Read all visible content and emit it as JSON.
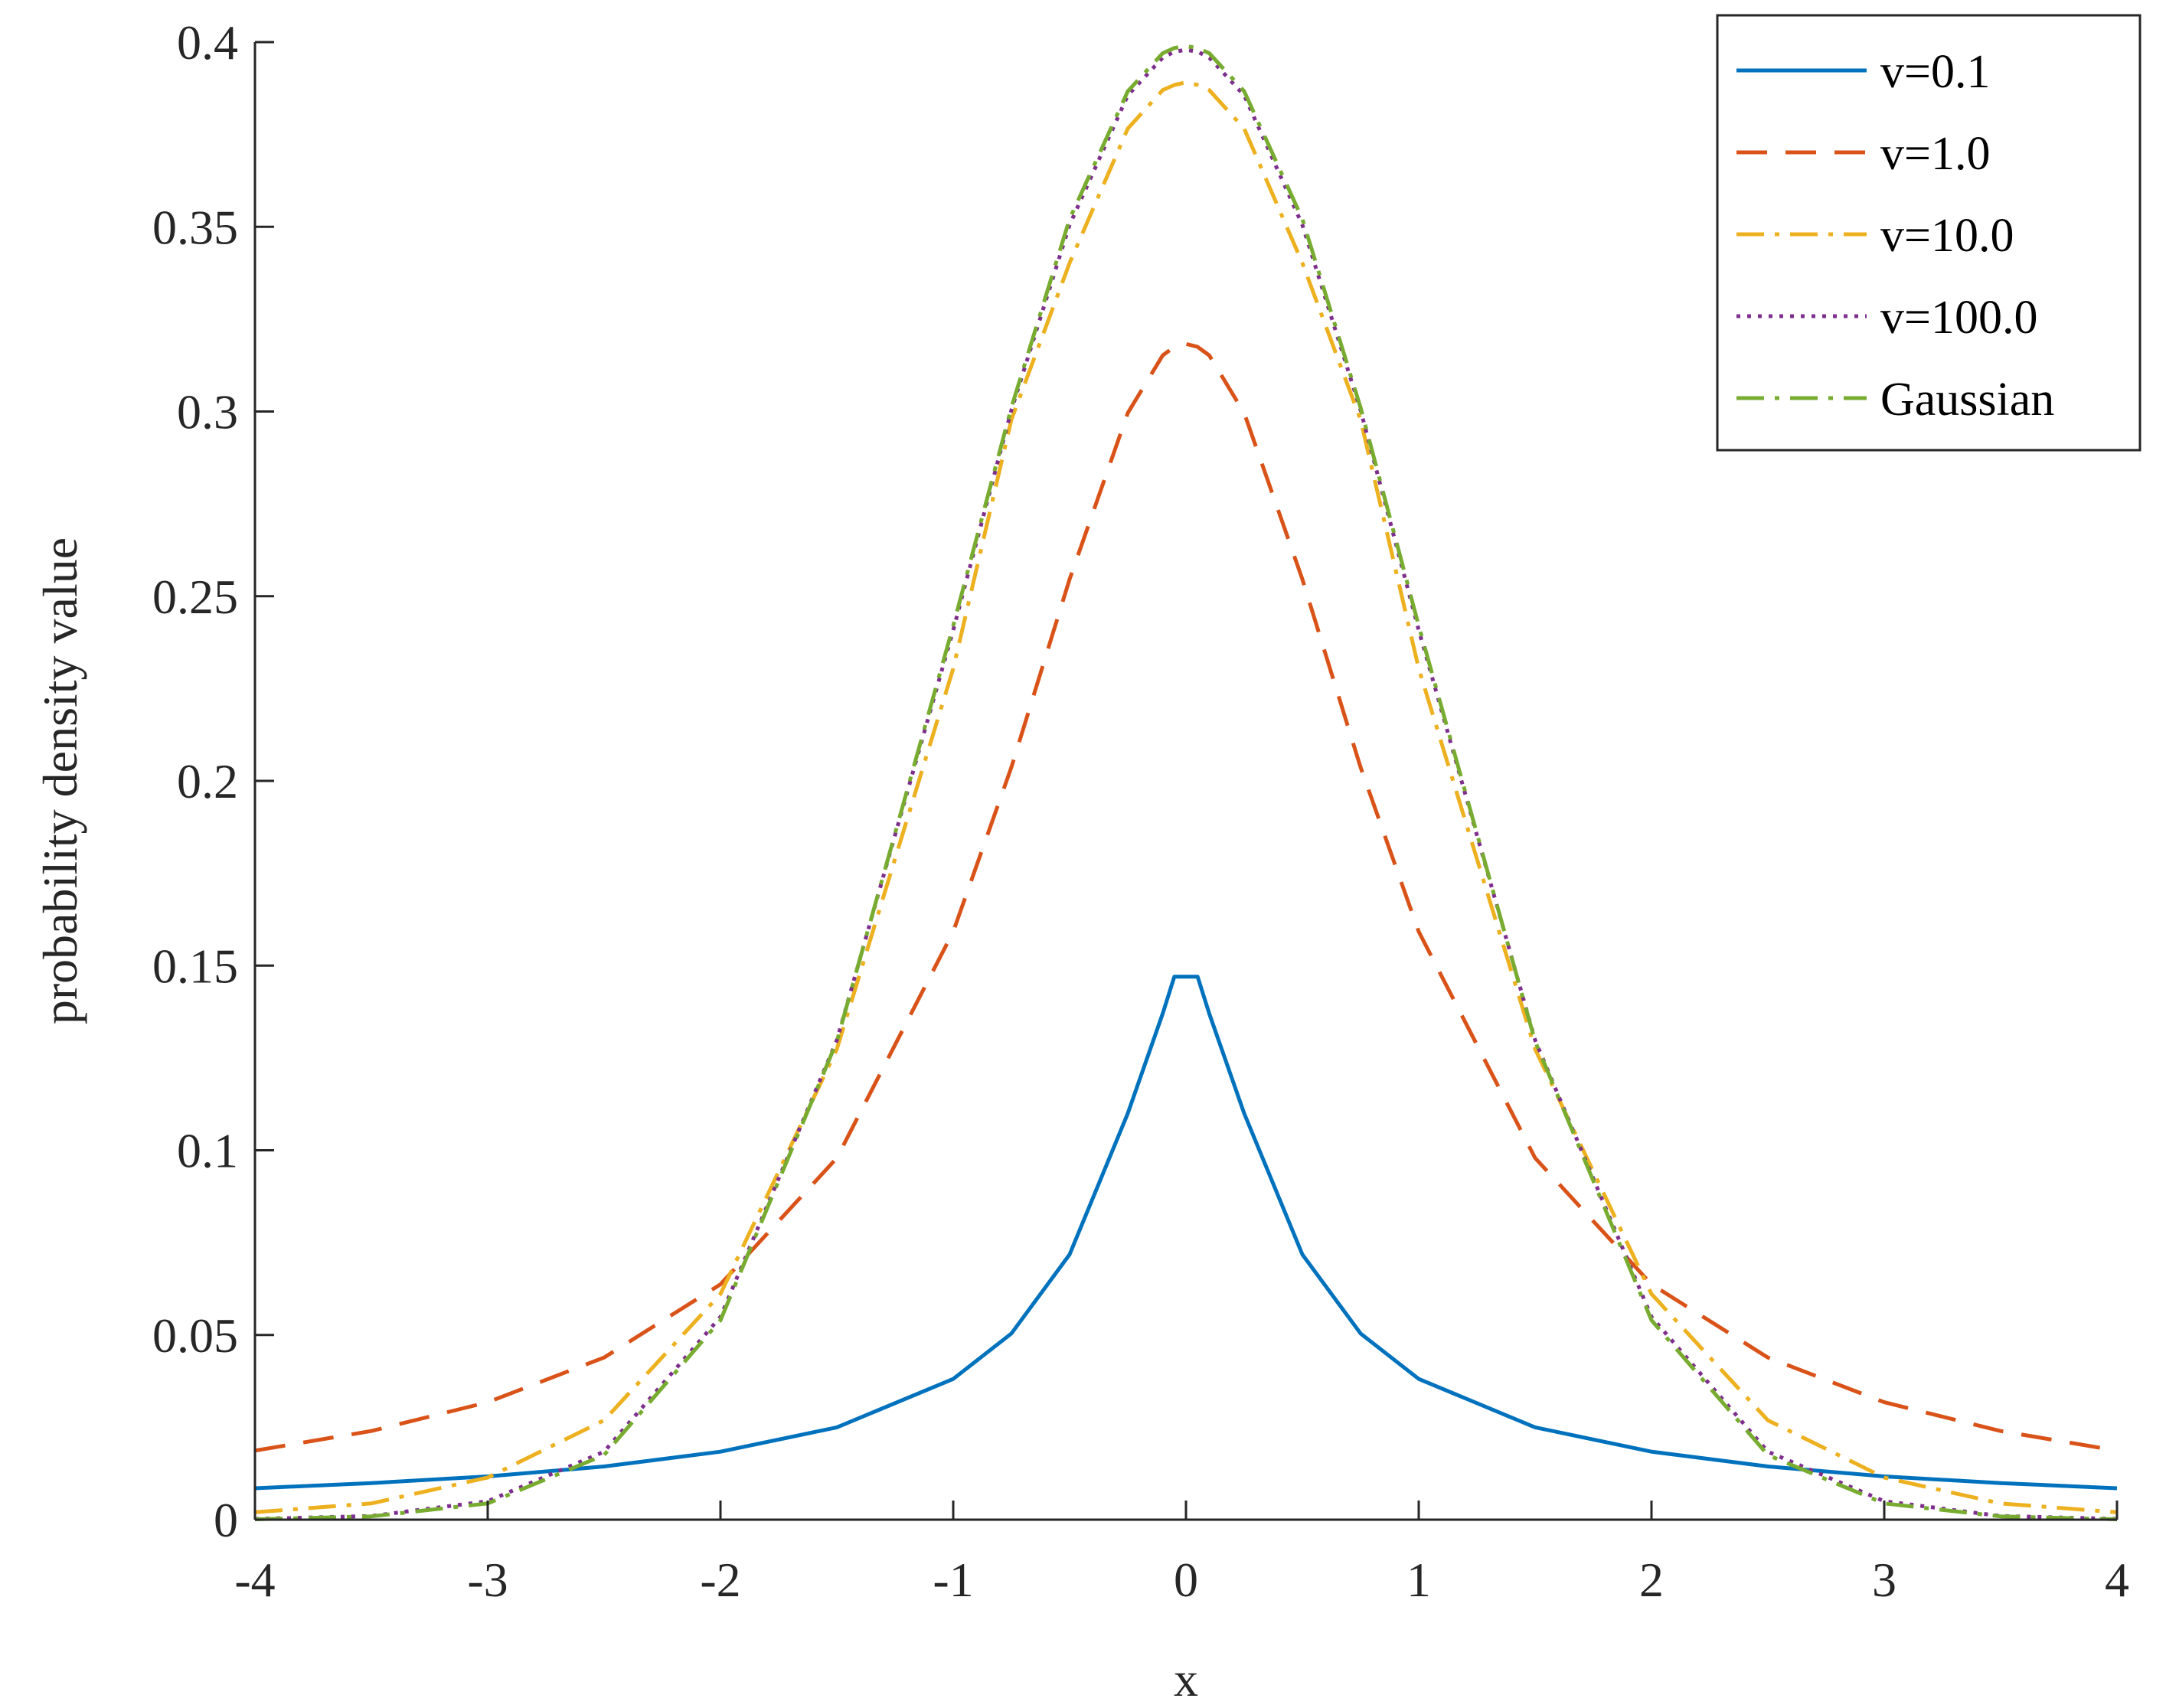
{
  "chart_data": {
    "type": "line",
    "xlabel": "x",
    "ylabel": "probability density value",
    "xlim": [
      -4,
      4
    ],
    "ylim": [
      0,
      0.4
    ],
    "x_ticks": [
      "-4",
      "-3",
      "-2",
      "-1",
      "0",
      "1",
      "2",
      "3",
      "4"
    ],
    "y_ticks": [
      "0",
      "0.05",
      "0.1",
      "0.15",
      "0.2",
      "0.25",
      "0.3",
      "0.35",
      "0.4"
    ],
    "grid": false,
    "legend_position": "top-right",
    "x": [
      -4.0,
      -3.5,
      -3.0,
      -2.5,
      -2.0,
      -1.5,
      -1.0,
      -0.75,
      -0.5,
      -0.25,
      -0.1,
      -0.05,
      0.0,
      0.05,
      0.1,
      0.25,
      0.5,
      0.75,
      1.0,
      1.5,
      2.0,
      2.5,
      3.0,
      3.5,
      4.0
    ],
    "series": [
      {
        "name": "v=0.1",
        "color": "#0072BD",
        "style": "solid",
        "values": [
          0.0085,
          0.0099,
          0.0117,
          0.0144,
          0.0184,
          0.025,
          0.0381,
          0.0504,
          0.0718,
          0.11,
          0.137,
          0.147,
          0.147,
          0.147,
          0.137,
          0.11,
          0.0718,
          0.0504,
          0.0381,
          0.025,
          0.0184,
          0.0144,
          0.0117,
          0.0099,
          0.0085
        ]
      },
      {
        "name": "v=1.0",
        "color": "#D95319",
        "style": "dashed",
        "values": [
          0.0187,
          0.024,
          0.0318,
          0.0439,
          0.0637,
          0.0979,
          0.1592,
          0.2037,
          0.2546,
          0.2996,
          0.3152,
          0.3175,
          0.3183,
          0.3175,
          0.3152,
          0.2996,
          0.2546,
          0.2037,
          0.1592,
          0.0979,
          0.0637,
          0.0439,
          0.0318,
          0.024,
          0.0187
        ]
      },
      {
        "name": "v=10.0",
        "color": "#EDB120",
        "style": "dashdot",
        "values": [
          0.002,
          0.0044,
          0.0114,
          0.0269,
          0.0611,
          0.1274,
          0.2304,
          0.2978,
          0.3402,
          0.3766,
          0.387,
          0.3884,
          0.3891,
          0.3884,
          0.387,
          0.3766,
          0.3402,
          0.2978,
          0.2304,
          0.1274,
          0.0611,
          0.0269,
          0.0114,
          0.0044,
          0.002
        ]
      },
      {
        "name": "v=100.0",
        "color": "#7E2F8E",
        "style": "dotted",
        "values": [
          0.0002,
          0.001,
          0.005,
          0.0184,
          0.0549,
          0.1298,
          0.2408,
          0.3004,
          0.3505,
          0.3856,
          0.3958,
          0.3974,
          0.3979,
          0.3974,
          0.3958,
          0.3856,
          0.3505,
          0.3004,
          0.2408,
          0.1298,
          0.0549,
          0.0184,
          0.005,
          0.001,
          0.0002
        ]
      },
      {
        "name": "Gaussian",
        "color": "#77AC30",
        "style": "dashdot",
        "values": [
          0.0001,
          0.0009,
          0.0044,
          0.0175,
          0.054,
          0.1295,
          0.242,
          0.3011,
          0.3521,
          0.3867,
          0.397,
          0.3984,
          0.3989,
          0.3984,
          0.397,
          0.3867,
          0.3521,
          0.3011,
          0.242,
          0.1295,
          0.054,
          0.0175,
          0.0044,
          0.0009,
          0.0001
        ]
      }
    ]
  }
}
